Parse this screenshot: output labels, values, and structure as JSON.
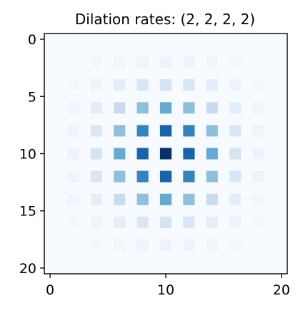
{
  "chart_data": {
    "type": "heatmap",
    "title": "Dilation rates: (2, 2, 2, 2)",
    "xlabel": "",
    "ylabel": "",
    "colormap": "Blues",
    "grid_size": [
      21,
      21
    ],
    "x_ticks": [
      "0",
      "10",
      "20"
    ],
    "y_ticks": [
      "0",
      "5",
      "10",
      "15",
      "20"
    ],
    "xlim": [
      -0.5,
      20.5
    ],
    "ylim": [
      20.5,
      -0.5
    ],
    "grid": false,
    "axis_color": "#000000",
    "value_range": [
      0,
      1
    ],
    "values": [
      [
        0,
        0,
        0,
        0,
        0,
        0,
        0,
        0,
        0,
        0,
        0,
        0,
        0,
        0,
        0,
        0,
        0,
        0,
        0,
        0,
        0
      ],
      [
        0,
        0,
        0,
        0,
        0,
        0,
        0,
        0,
        0,
        0,
        0,
        0,
        0,
        0,
        0,
        0,
        0,
        0,
        0,
        0,
        0
      ],
      [
        0,
        0,
        0,
        0,
        0.02,
        0,
        0.04,
        0,
        0.05,
        0,
        0.06,
        0,
        0.05,
        0,
        0.04,
        0,
        0.02,
        0,
        0,
        0,
        0
      ],
      [
        0,
        0,
        0,
        0,
        0,
        0,
        0,
        0,
        0,
        0,
        0,
        0,
        0,
        0,
        0,
        0,
        0,
        0,
        0,
        0,
        0
      ],
      [
        0,
        0,
        0.02,
        0,
        0.05,
        0,
        0.1,
        0,
        0.16,
        0,
        0.18,
        0,
        0.16,
        0,
        0.1,
        0,
        0.05,
        0,
        0.02,
        0,
        0
      ],
      [
        0,
        0,
        0,
        0,
        0,
        0,
        0,
        0,
        0,
        0,
        0,
        0,
        0,
        0,
        0,
        0,
        0,
        0,
        0,
        0,
        0
      ],
      [
        0,
        0,
        0.04,
        0,
        0.1,
        0,
        0.24,
        0,
        0.42,
        0,
        0.52,
        0,
        0.42,
        0,
        0.24,
        0,
        0.1,
        0,
        0.04,
        0,
        0
      ],
      [
        0,
        0,
        0,
        0,
        0,
        0,
        0,
        0,
        0,
        0,
        0,
        0,
        0,
        0,
        0,
        0,
        0,
        0,
        0,
        0,
        0
      ],
      [
        0,
        0,
        0.05,
        0,
        0.16,
        0,
        0.42,
        0,
        0.68,
        0,
        0.8,
        0,
        0.68,
        0,
        0.42,
        0,
        0.16,
        0,
        0.05,
        0,
        0
      ],
      [
        0,
        0,
        0,
        0,
        0,
        0,
        0,
        0,
        0,
        0,
        0,
        0,
        0,
        0,
        0,
        0,
        0,
        0,
        0,
        0,
        0
      ],
      [
        0,
        0,
        0.06,
        0,
        0.18,
        0,
        0.52,
        0,
        0.8,
        0,
        1.0,
        0,
        0.8,
        0,
        0.52,
        0,
        0.18,
        0,
        0.06,
        0,
        0
      ],
      [
        0,
        0,
        0,
        0,
        0,
        0,
        0,
        0,
        0,
        0,
        0,
        0,
        0,
        0,
        0,
        0,
        0,
        0,
        0,
        0,
        0
      ],
      [
        0,
        0,
        0.05,
        0,
        0.16,
        0,
        0.42,
        0,
        0.68,
        0,
        0.8,
        0,
        0.68,
        0,
        0.42,
        0,
        0.16,
        0,
        0.05,
        0,
        0
      ],
      [
        0,
        0,
        0,
        0,
        0,
        0,
        0,
        0,
        0,
        0,
        0,
        0,
        0,
        0,
        0,
        0,
        0,
        0,
        0,
        0,
        0
      ],
      [
        0,
        0,
        0.04,
        0,
        0.1,
        0,
        0.24,
        0,
        0.42,
        0,
        0.52,
        0,
        0.42,
        0,
        0.24,
        0,
        0.1,
        0,
        0.04,
        0,
        0
      ],
      [
        0,
        0,
        0,
        0,
        0,
        0,
        0,
        0,
        0,
        0,
        0,
        0,
        0,
        0,
        0,
        0,
        0,
        0,
        0,
        0,
        0
      ],
      [
        0,
        0,
        0.02,
        0,
        0.05,
        0,
        0.1,
        0,
        0.16,
        0,
        0.18,
        0,
        0.16,
        0,
        0.1,
        0,
        0.05,
        0,
        0.02,
        0,
        0
      ],
      [
        0,
        0,
        0,
        0,
        0,
        0,
        0,
        0,
        0,
        0,
        0,
        0,
        0,
        0,
        0,
        0,
        0,
        0,
        0,
        0,
        0
      ],
      [
        0,
        0,
        0,
        0,
        0.02,
        0,
        0.04,
        0,
        0.05,
        0,
        0.06,
        0,
        0.05,
        0,
        0.04,
        0,
        0.02,
        0,
        0,
        0,
        0
      ],
      [
        0,
        0,
        0,
        0,
        0,
        0,
        0,
        0,
        0,
        0,
        0,
        0,
        0,
        0,
        0,
        0,
        0,
        0,
        0,
        0,
        0
      ],
      [
        0,
        0,
        0,
        0,
        0,
        0,
        0,
        0,
        0,
        0,
        0,
        0,
        0,
        0,
        0,
        0,
        0,
        0,
        0,
        0,
        0
      ]
    ]
  }
}
